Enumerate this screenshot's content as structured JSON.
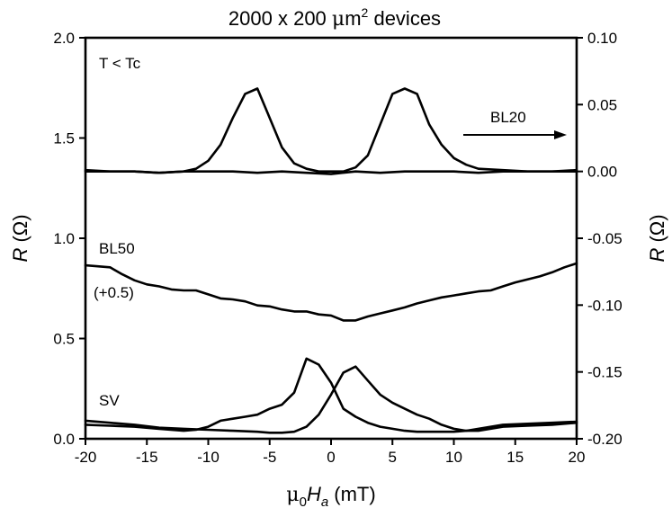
{
  "chart_data": {
    "type": "line",
    "title": {
      "pre": "2000 x 200 ",
      "mu": "μ",
      "m": "m",
      "sup": "2",
      "post": " devices"
    },
    "xlabel": {
      "mu": "μ",
      "sub0": "0",
      "H": "H",
      "sub_a": "a",
      "unit": " (mT)"
    },
    "ylabel_left": {
      "R": "R",
      "unit": " (Ω)"
    },
    "ylabel_right": {
      "R": "R",
      "unit": " (Ω)"
    },
    "xlim": [
      -20,
      20
    ],
    "ylim_left": [
      0.0,
      2.0
    ],
    "ylim_right": [
      -0.2,
      0.1
    ],
    "x_ticks": [
      "-20",
      "-15",
      "-10",
      "-5",
      "0",
      "5",
      "10",
      "15",
      "20"
    ],
    "y_left_ticks": [
      "0.0",
      "0.5",
      "1.0",
      "1.5",
      "2.0"
    ],
    "y_right_ticks": [
      "-0.20",
      "-0.15",
      "-0.10",
      "-0.05",
      "0.00",
      "0.05",
      "0.10"
    ],
    "annotations": {
      "t_tc": "T < Tc",
      "bl20": "BL20",
      "bl50": "BL50",
      "offset": "(+0.5)",
      "sv": "SV"
    },
    "series": [
      {
        "axis": "right",
        "x": [
          -20,
          -18,
          -16,
          -14,
          -12,
          -11,
          -10,
          -9,
          -8,
          -7,
          -6,
          -5,
          -4,
          -3,
          -2,
          -1,
          0,
          1,
          2,
          3,
          4,
          5,
          6,
          7,
          8,
          9,
          10,
          11,
          12,
          14,
          16,
          18,
          20
        ],
        "y": [
          0.0,
          0.0,
          0.0,
          -0.001,
          0.0,
          0.002,
          0.008,
          0.02,
          0.04,
          0.058,
          0.062,
          0.04,
          0.018,
          0.006,
          0.002,
          0.0,
          0.0,
          0.0,
          0.003,
          0.012,
          0.035,
          0.058,
          0.062,
          0.058,
          0.035,
          0.02,
          0.01,
          0.005,
          0.002,
          0.001,
          0.0,
          0.0,
          0.0
        ]
      },
      {
        "axis": "right",
        "x": [
          20,
          18,
          16,
          14,
          12,
          10,
          8,
          6,
          4,
          2,
          0,
          -2,
          -4,
          -6,
          -8,
          -10,
          -12,
          -14,
          -16,
          -18,
          -20
        ],
        "y": [
          0.001,
          0.0,
          0.0,
          0.0,
          -0.001,
          0.0,
          0.0,
          0.0,
          -0.001,
          0.0,
          -0.002,
          -0.001,
          0.0,
          -0.001,
          0.0,
          0.0,
          0.0,
          -0.001,
          0.0,
          0.0,
          0.001
        ]
      },
      {
        "axis": "left",
        "x": [
          -20,
          -19,
          -18,
          -17,
          -16,
          -15,
          -14,
          -13,
          -12,
          -11,
          -10,
          -9,
          -8,
          -7,
          -6,
          -5,
          -4,
          -3,
          -2,
          -1,
          0,
          1,
          2,
          3,
          4,
          5,
          6,
          7,
          8,
          9,
          10,
          11,
          12,
          13,
          14,
          15,
          16,
          17,
          18,
          19,
          20
        ],
        "y": [
          0.865,
          0.86,
          0.855,
          0.82,
          0.79,
          0.77,
          0.76,
          0.745,
          0.74,
          0.74,
          0.72,
          0.7,
          0.695,
          0.685,
          0.665,
          0.66,
          0.645,
          0.635,
          0.635,
          0.62,
          0.615,
          0.59,
          0.59,
          0.61,
          0.625,
          0.64,
          0.655,
          0.675,
          0.69,
          0.705,
          0.715,
          0.725,
          0.735,
          0.74,
          0.76,
          0.78,
          0.795,
          0.81,
          0.83,
          0.855,
          0.875
        ]
      },
      {
        "axis": "left",
        "x": [
          -20,
          -18,
          -16,
          -14,
          -12,
          -11,
          -10,
          -9,
          -8,
          -7,
          -6,
          -5,
          -4,
          -3,
          -2,
          -1,
          0,
          1,
          2,
          3,
          4,
          5,
          6,
          7,
          8,
          9,
          10,
          11,
          12,
          13,
          14,
          16,
          18,
          20
        ],
        "y": [
          0.07,
          0.065,
          0.06,
          0.05,
          0.04,
          0.045,
          0.06,
          0.09,
          0.1,
          0.11,
          0.12,
          0.15,
          0.17,
          0.23,
          0.4,
          0.37,
          0.28,
          0.15,
          0.11,
          0.08,
          0.06,
          0.05,
          0.04,
          0.035,
          0.035,
          0.035,
          0.035,
          0.04,
          0.04,
          0.05,
          0.06,
          0.065,
          0.07,
          0.08
        ]
      },
      {
        "axis": "left",
        "x": [
          20,
          18,
          16,
          14,
          12,
          11,
          10,
          9,
          8,
          7,
          6,
          5,
          4,
          3,
          2,
          1,
          0,
          -1,
          -2,
          -3,
          -4,
          -5,
          -6,
          -8,
          -10,
          -12,
          -14,
          -16,
          -18,
          -20
        ],
        "y": [
          0.085,
          0.08,
          0.075,
          0.07,
          0.05,
          0.04,
          0.05,
          0.07,
          0.1,
          0.12,
          0.15,
          0.18,
          0.22,
          0.29,
          0.36,
          0.33,
          0.22,
          0.12,
          0.06,
          0.035,
          0.03,
          0.03,
          0.035,
          0.04,
          0.045,
          0.05,
          0.055,
          0.07,
          0.08,
          0.09
        ]
      }
    ]
  }
}
